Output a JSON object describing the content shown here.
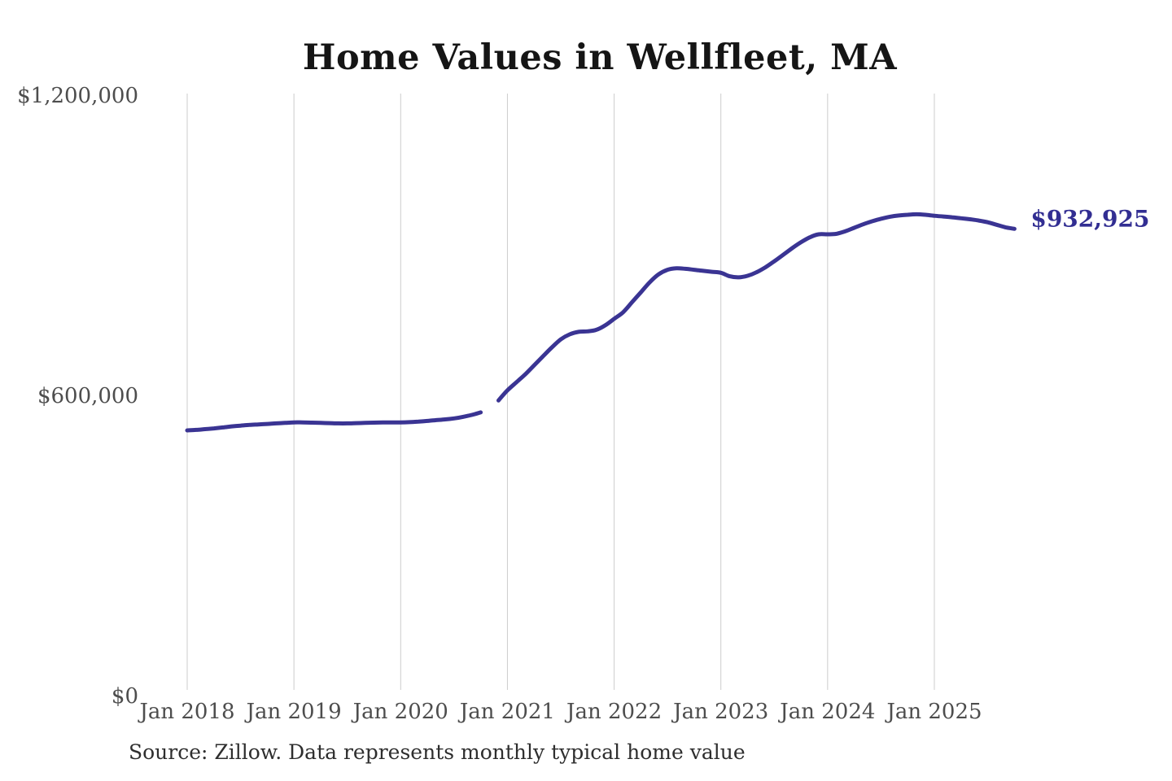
{
  "page": {
    "title": "Home Values in Wellfleet, MA",
    "source": "Source: Zillow. Data represents monthly typical home value"
  },
  "chart_data": {
    "type": "line",
    "title": "Home Values in Wellfleet, MA",
    "xlabel": "",
    "ylabel": "",
    "ylim": [
      0,
      1200000
    ],
    "grid": "vertical-only",
    "legend": "none",
    "y_ticks": [
      {
        "value": 0,
        "label": "$0"
      },
      {
        "value": 600000,
        "label": "$600,000"
      },
      {
        "value": 1200000,
        "label": "$1,200,000"
      }
    ],
    "x_ticks": [
      {
        "month_index": 0,
        "label": "Jan 2018"
      },
      {
        "month_index": 12,
        "label": "Jan 2019"
      },
      {
        "month_index": 24,
        "label": "Jan 2020"
      },
      {
        "month_index": 36,
        "label": "Jan 2021"
      },
      {
        "month_index": 48,
        "label": "Jan 2022"
      },
      {
        "month_index": 60,
        "label": "Jan 2023"
      },
      {
        "month_index": 72,
        "label": "Jan 2024"
      },
      {
        "month_index": 84,
        "label": "Jan 2025"
      }
    ],
    "series": [
      {
        "name": "Monthly typical home value",
        "unit": "USD",
        "start_month": "2018-01",
        "gap_note": "null = missing month (Nov 2020)",
        "monthly_values": [
          530000,
          531000,
          532500,
          534000,
          536000,
          538000,
          539500,
          541000,
          542000,
          543000,
          544000,
          545000,
          546000,
          546000,
          545500,
          545000,
          544500,
          544000,
          544000,
          544500,
          545000,
          545500,
          546000,
          546000,
          546000,
          546500,
          547500,
          549000,
          550500,
          552000,
          554000,
          557000,
          561000,
          566000,
          null,
          590000,
          610000,
          626000,
          642000,
          660000,
          678000,
          696000,
          712000,
          722000,
          727000,
          728000,
          731000,
          740000,
          753000,
          766000,
          786000,
          806000,
          826000,
          842000,
          851000,
          854000,
          853000,
          851000,
          849000,
          847000,
          845000,
          838000,
          836000,
          839000,
          846000,
          856000,
          868000,
          881000,
          894000,
          906000,
          916000,
          922000,
          922000,
          923000,
          928000,
          935000,
          942000,
          948000,
          953000,
          957000,
          959500,
          961000,
          962000,
          961000,
          959000,
          957500,
          956000,
          954000,
          952000,
          949500,
          946000,
          941000,
          936000,
          932925
        ]
      }
    ],
    "end_label": "$932,925",
    "end_value": 932925,
    "source": "Source: Zillow. Data represents monthly typical home value",
    "colors": {
      "line": "#3a3493",
      "end_label": "#322e92",
      "tick_text": "#4d4d4d",
      "title_text": "#151515",
      "source_text": "#2e2e2e",
      "gridline": "#cccccc",
      "background": "#ffffff"
    }
  }
}
